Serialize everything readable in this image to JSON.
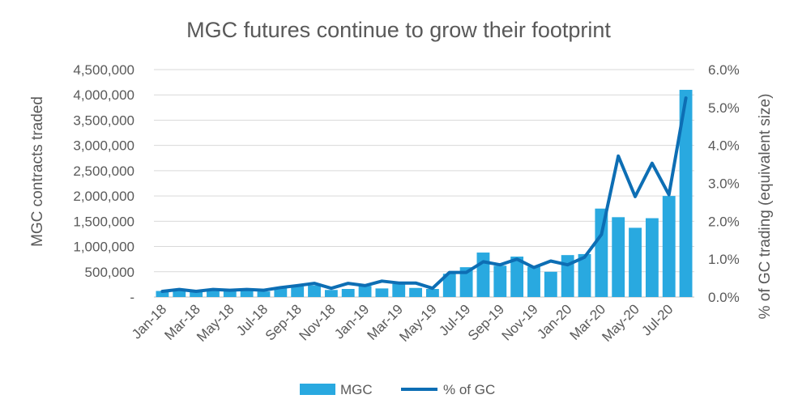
{
  "chart_data": {
    "type": "bar",
    "title": "MGC futures continue to grow their footprint",
    "xlabel": "",
    "ylabel": "MGC contracts traded",
    "y2label": "% of GC trading (equivalent size)",
    "ylim": [
      0,
      4500000
    ],
    "y2lim": [
      0,
      6.0
    ],
    "yticks": [
      "-",
      "500,000",
      "1,000,000",
      "1,500,000",
      "2,000,000",
      "2,500,000",
      "3,000,000",
      "3,500,000",
      "4,000,000",
      "4,500,000"
    ],
    "y2ticks": [
      "0.0%",
      "1.0%",
      "2.0%",
      "3.0%",
      "4.0%",
      "5.0%",
      "6.0%"
    ],
    "grid": true,
    "legend_position": "bottom",
    "categories": [
      "Jan-18",
      "Feb-18",
      "Mar-18",
      "Apr-18",
      "May-18",
      "Jun-18",
      "Jul-18",
      "Aug-18",
      "Sep-18",
      "Oct-18",
      "Nov-18",
      "Dec-18",
      "Jan-19",
      "Feb-19",
      "Mar-19",
      "Apr-19",
      "May-19",
      "Jun-19",
      "Jul-19",
      "Aug-19",
      "Sep-19",
      "Oct-19",
      "Nov-19",
      "Dec-19",
      "Jan-20",
      "Feb-20",
      "Mar-20",
      "Apr-20",
      "May-20",
      "Jun-20",
      "Jul-20",
      "Aug-20"
    ],
    "xtick_labels": [
      "Jan-18",
      "",
      "Mar-18",
      "",
      "May-18",
      "",
      "Jul-18",
      "",
      "Sep-18",
      "",
      "Nov-18",
      "",
      "Jan-19",
      "",
      "Mar-19",
      "",
      "May-19",
      "",
      "Jul-19",
      "",
      "Sep-19",
      "",
      "Nov-19",
      "",
      "Jan-20",
      "",
      "Mar-20",
      "",
      "May-20",
      "",
      "Jul-20",
      ""
    ],
    "series": [
      {
        "name": "MGC",
        "type": "bar",
        "axis": "left",
        "color": "#29a9e0",
        "values": [
          120000,
          130000,
          110000,
          140000,
          120000,
          150000,
          110000,
          180000,
          210000,
          230000,
          140000,
          160000,
          220000,
          170000,
          260000,
          180000,
          160000,
          460000,
          590000,
          880000,
          620000,
          800000,
          600000,
          500000,
          830000,
          850000,
          1750000,
          1580000,
          1370000,
          1560000,
          2000000,
          4100000
        ]
      },
      {
        "name": "% of GC",
        "type": "line",
        "axis": "right",
        "color": "#0d6eb4",
        "values": [
          0.15,
          0.2,
          0.15,
          0.2,
          0.18,
          0.2,
          0.18,
          0.25,
          0.3,
          0.36,
          0.23,
          0.36,
          0.3,
          0.42,
          0.37,
          0.37,
          0.23,
          0.65,
          0.65,
          0.93,
          0.85,
          1.0,
          0.78,
          0.95,
          0.85,
          1.05,
          1.65,
          3.72,
          2.65,
          3.53,
          2.7,
          5.25
        ]
      }
    ]
  }
}
